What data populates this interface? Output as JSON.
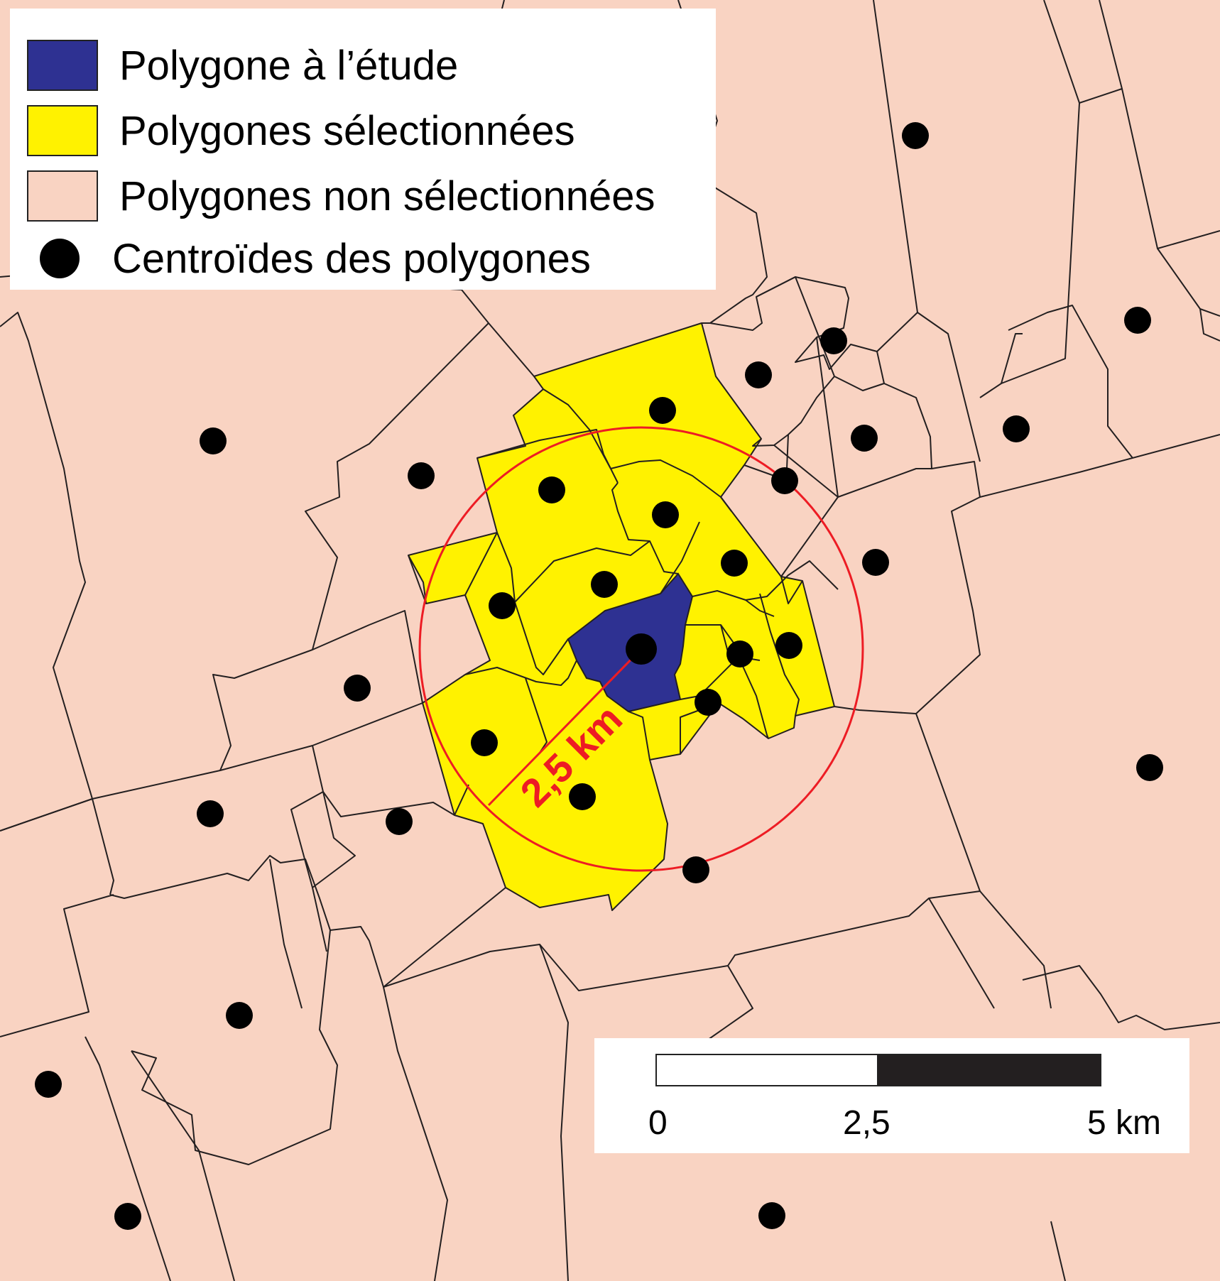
{
  "legend": {
    "items": [
      {
        "label": "Polygone à l’étude",
        "color": "#2e3192",
        "symbol": "square"
      },
      {
        "label": "Polygones sélectionnées",
        "color": "#fff200",
        "symbol": "square"
      },
      {
        "label": "Polygones non sélectionnées",
        "color": "#f9d3c2",
        "symbol": "square"
      },
      {
        "label": "Centroïdes des polygones",
        "color": "#000000",
        "symbol": "dot"
      }
    ]
  },
  "buffer": {
    "radius_label": "2,5 km",
    "color": "#ed1c24"
  },
  "scale_bar": {
    "ticks": [
      "0",
      "2,5",
      "5 km"
    ]
  },
  "colors": {
    "background": "#f9d3c2",
    "selected": "#fff200",
    "study": "#2e3192",
    "boundary": "#231f20",
    "buffer": "#ed1c24"
  }
}
